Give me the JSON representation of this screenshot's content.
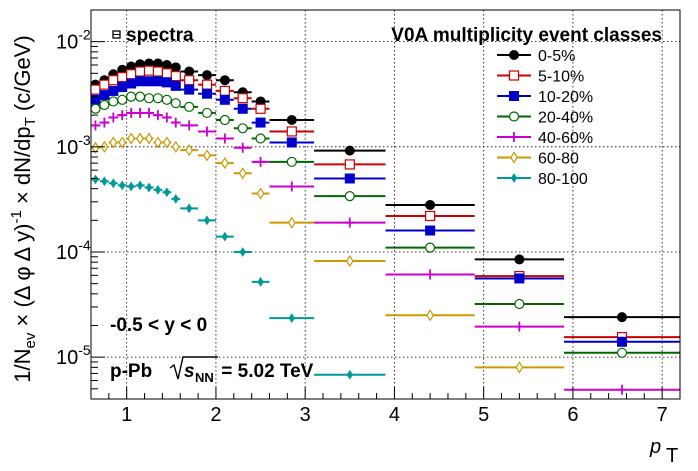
{
  "chart_data": {
    "type": "scatter",
    "title_left": "spectra",
    "title_right": "V0A multiplicity event classes",
    "xlabel": "p",
    "xlabel_sub": "T",
    "ylabel_parts": {
      "a": "1/N",
      "a_sub": "ev",
      "b": " × (Δ φ Δ y)",
      "b_sup": "-1",
      "c": " × dN/dp",
      "c_sub": "T",
      "d": " (c/GeV)"
    },
    "xlim": [
      0.6,
      7.2
    ],
    "ylim": [
      4e-06,
      0.02
    ],
    "yscale": "log",
    "grid": true,
    "legend_position": "top-right",
    "annotations": {
      "rapidity": "-0.5 < y < 0",
      "system": "p-Pb",
      "energy_sqrt": "s",
      "energy_sub": "NN",
      "energy_value": " = 5.02 TeV"
    },
    "x_ticks": [
      {
        "v": 1,
        "label": "1"
      },
      {
        "v": 2,
        "label": "2"
      },
      {
        "v": 3,
        "label": "3"
      },
      {
        "v": 4,
        "label": "4"
      },
      {
        "v": 5,
        "label": "5"
      },
      {
        "v": 6,
        "label": "6"
      },
      {
        "v": 7,
        "label": "7"
      }
    ],
    "y_major_ticks": [
      {
        "v": 1e-05,
        "base": "10",
        "exp": "-5"
      },
      {
        "v": 0.0001,
        "base": "10",
        "exp": "-4"
      },
      {
        "v": 0.001,
        "base": "10",
        "exp": "-3"
      },
      {
        "v": 0.01,
        "base": "10",
        "exp": "-2"
      }
    ],
    "x_edges": [
      0.6,
      0.7,
      0.8,
      0.9,
      1.0,
      1.1,
      1.2,
      1.3,
      1.4,
      1.5,
      1.6,
      1.8,
      2.0,
      2.2,
      2.4,
      2.6,
      3.1,
      3.9,
      4.9,
      5.9,
      7.2
    ],
    "series": [
      {
        "name": "0-5%",
        "color": "#000000",
        "marker": "circle-filled",
        "values": [
          0.0039,
          0.0043,
          0.0049,
          0.0054,
          0.0058,
          0.0061,
          0.0062,
          0.0062,
          0.006,
          0.0057,
          0.0052,
          0.0048,
          0.0043,
          0.0033,
          0.0027,
          0.0018,
          0.00092,
          0.00028,
          8.5e-05,
          2.4e-05
        ]
      },
      {
        "name": "5-10%",
        "color": "#cc0000",
        "marker": "square-open",
        "values": [
          0.0035,
          0.0039,
          0.0043,
          0.0046,
          0.0049,
          0.0052,
          0.0053,
          0.0052,
          0.005,
          0.0047,
          0.0043,
          0.0039,
          0.0034,
          0.0029,
          0.0023,
          0.0014,
          0.00068,
          0.00022,
          5.9e-05,
          1.55e-05
        ]
      },
      {
        "name": "10-20%",
        "color": "#0000cc",
        "marker": "square-filled",
        "values": [
          0.0028,
          0.0031,
          0.0034,
          0.0037,
          0.004,
          0.0042,
          0.0042,
          0.0042,
          0.0041,
          0.0038,
          0.0035,
          0.0032,
          0.0028,
          0.0023,
          0.0017,
          0.0011,
          0.0005,
          0.00016,
          5.6e-05,
          1.4e-05
        ]
      },
      {
        "name": "20-40%",
        "color": "#006600",
        "marker": "circle-open",
        "values": [
          0.0023,
          0.0025,
          0.0027,
          0.0028,
          0.003,
          0.003,
          0.0029,
          0.0029,
          0.0028,
          0.0026,
          0.0024,
          0.0021,
          0.0018,
          0.0015,
          0.0012,
          0.00072,
          0.00034,
          0.00011,
          3.2e-05,
          1.1e-05
        ]
      },
      {
        "name": "40-60%",
        "color": "#cc00cc",
        "marker": "plus",
        "values": [
          0.0016,
          0.0017,
          0.0019,
          0.002,
          0.0021,
          0.0021,
          0.0021,
          0.002,
          0.0019,
          0.0017,
          0.0016,
          0.0014,
          0.0012,
          0.00098,
          0.00072,
          0.00042,
          0.00019,
          6.1e-05,
          1.95e-05,
          4.9e-06
        ]
      },
      {
        "name": "60-80",
        "color": "#cc9900",
        "marker": "diamond-open",
        "values": [
          0.00098,
          0.001,
          0.0011,
          0.0011,
          0.0012,
          0.0012,
          0.0012,
          0.0011,
          0.0011,
          0.001,
          0.00093,
          0.00083,
          0.0007,
          0.00056,
          0.00036,
          0.00019,
          8.2e-05,
          2.5e-05,
          8e-06,
          null
        ]
      },
      {
        "name": "80-100",
        "color": "#009999",
        "marker": "diamond-filled",
        "values": [
          0.00049,
          0.00047,
          0.00045,
          0.00043,
          0.00042,
          0.00043,
          0.00041,
          0.00039,
          0.00037,
          0.00032,
          0.00026,
          0.0002,
          0.00014,
          0.0001,
          5.2e-05,
          2.35e-05,
          6.8e-06,
          null,
          null,
          null
        ]
      }
    ],
    "legend_labels": [
      "0-5%",
      "5-10%",
      "10-20%",
      "20-40%",
      "40-60%",
      "60-80",
      "80-100"
    ]
  }
}
